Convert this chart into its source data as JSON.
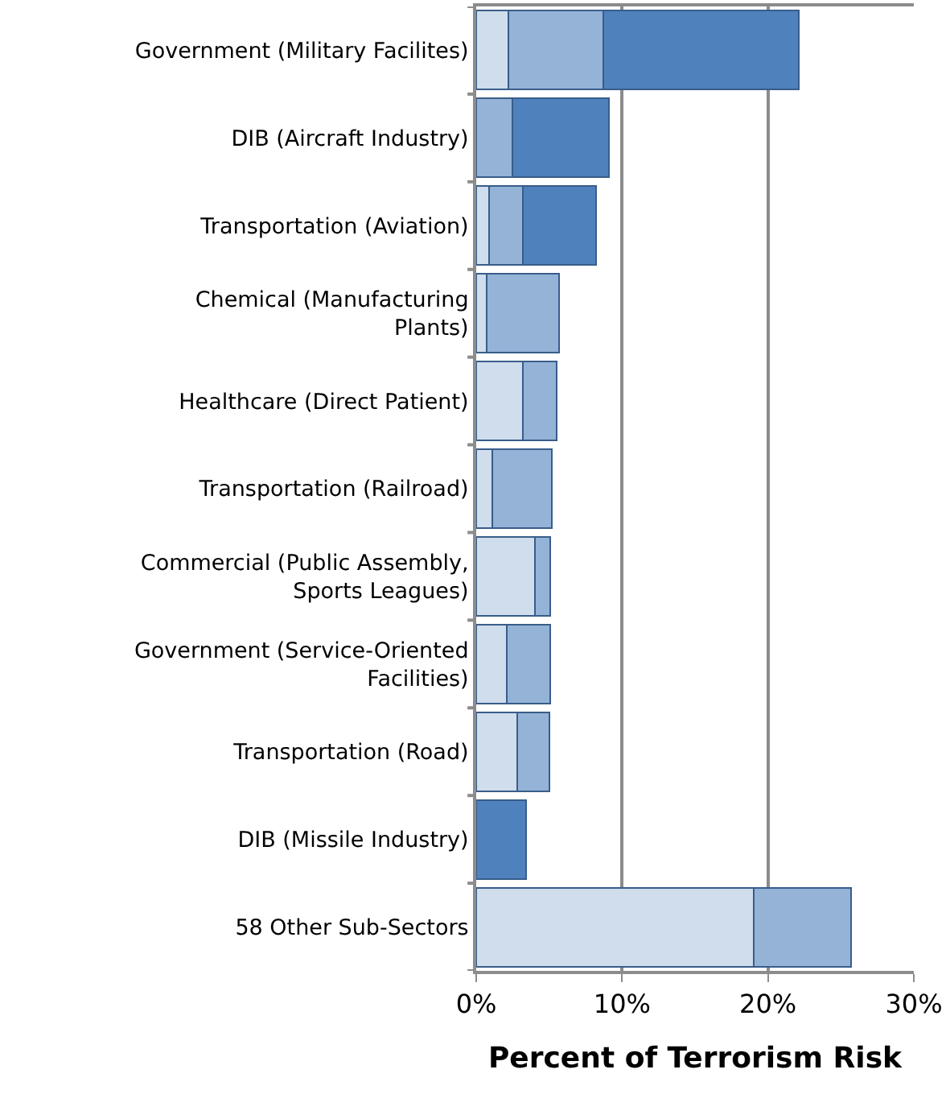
{
  "chart_data": {
    "type": "bar",
    "orientation": "horizontal",
    "stacked": true,
    "xlabel": "Percent of Terrorism Risk",
    "categories": [
      "Government (Military Facilites)",
      "DIB (Aircraft Industry)",
      "Transportation (Aviation)",
      "Chemical (Manufacturing\nPlants)",
      "Healthcare (Direct Patient)",
      "Transportation (Railroad)",
      "Commercial (Public Assembly,\nSports Leagues)",
      "Government (Service-Oriented\nFacilities)",
      "Transportation (Road)",
      "DIB (Missile Industry)",
      "58 Other Sub-Sectors"
    ],
    "series": [
      {
        "color": "#d0ddec",
        "values": [
          2.2,
          null,
          0.9,
          0.7,
          3.2,
          1.1,
          4.0,
          2.1,
          2.8,
          null,
          19.0
        ]
      },
      {
        "color": "#95b3d7",
        "values": [
          6.5,
          2.5,
          2.3,
          5.0,
          2.3,
          4.1,
          1.1,
          3.0,
          2.2,
          null,
          6.7
        ]
      },
      {
        "color": "#4f81bd",
        "values": [
          13.4,
          6.6,
          5.0,
          null,
          null,
          null,
          null,
          null,
          null,
          3.4,
          null
        ]
      }
    ],
    "xlim": [
      0,
      30
    ],
    "xticks": [
      {
        "value": 0,
        "label": "0%"
      },
      {
        "value": 10,
        "label": "10%"
      },
      {
        "value": 20,
        "label": "20%"
      },
      {
        "value": 30,
        "label": "30%"
      }
    ],
    "grid": "x"
  }
}
